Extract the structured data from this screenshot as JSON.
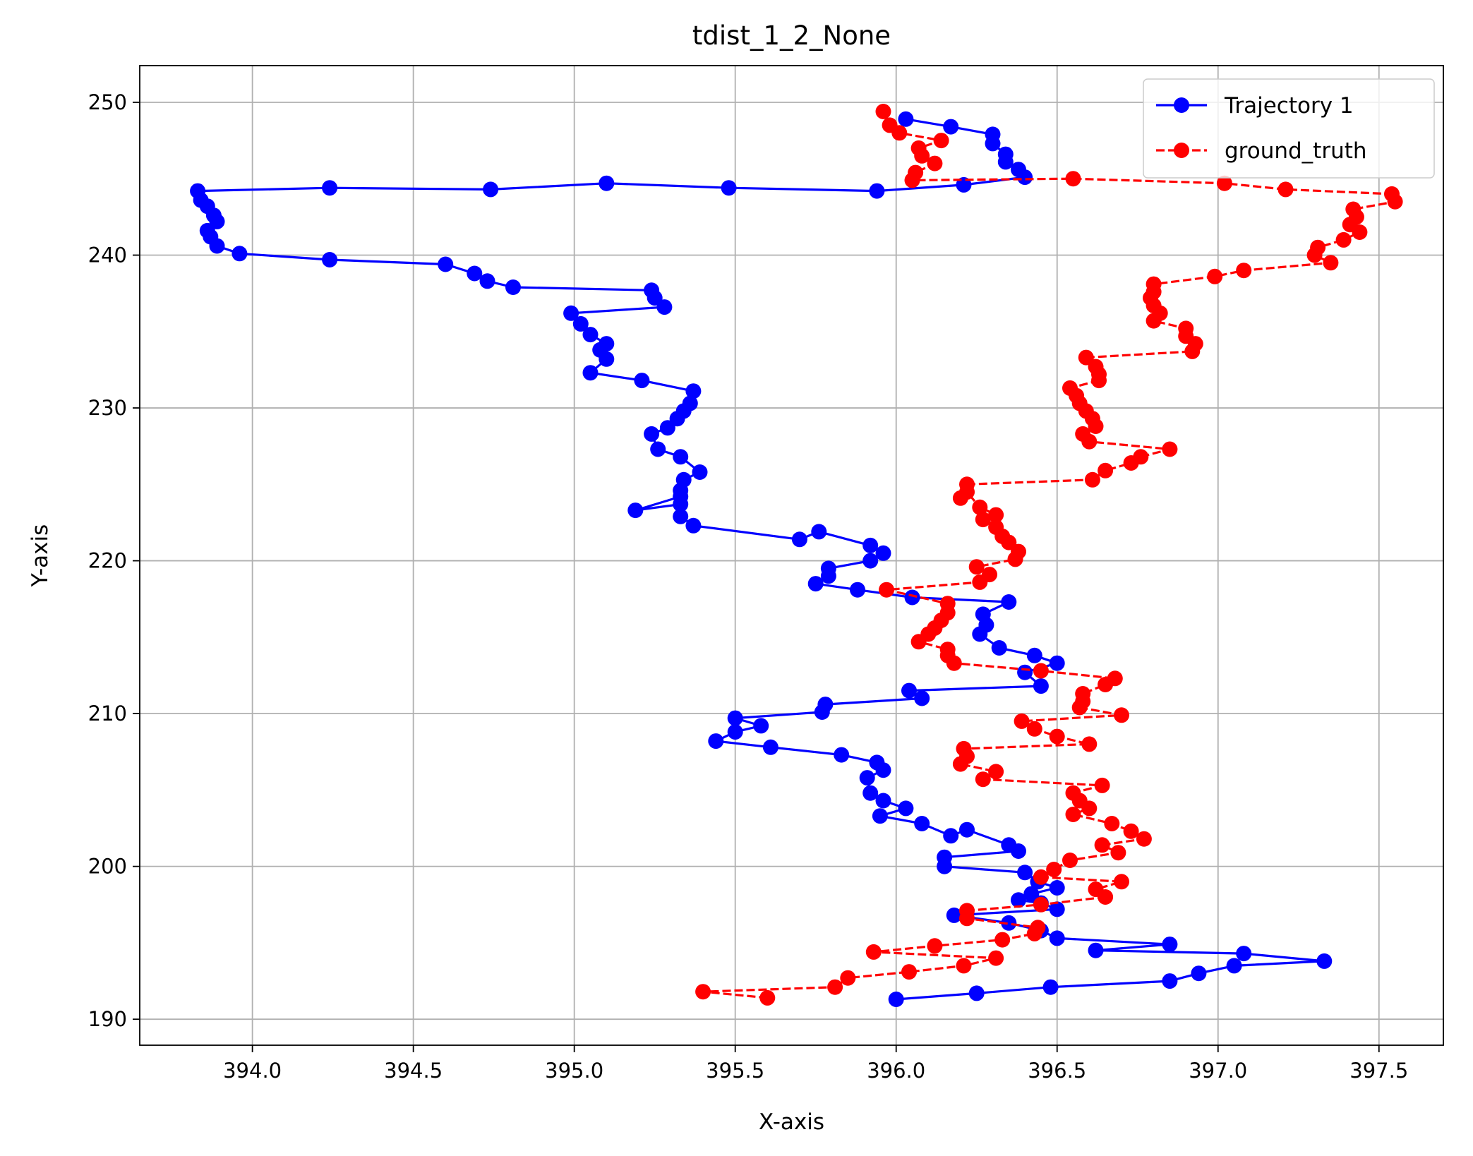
{
  "chart_data": {
    "type": "line",
    "title": "tdist_1_2_None",
    "xlabel": "X-axis",
    "ylabel": "Y-axis",
    "xlim": [
      393.65,
      397.7
    ],
    "ylim": [
      188.3,
      252.4
    ],
    "xticks": [
      394.0,
      394.5,
      395.0,
      395.5,
      396.0,
      396.5,
      397.0,
      397.5
    ],
    "xtick_labels": [
      "394.0",
      "394.5",
      "395.0",
      "395.5",
      "396.0",
      "396.5",
      "397.0",
      "397.5"
    ],
    "yticks": [
      190,
      200,
      210,
      220,
      230,
      240,
      250
    ],
    "ytick_labels": [
      "190",
      "200",
      "210",
      "220",
      "230",
      "240",
      "250"
    ],
    "grid": true,
    "legend_position": "top-right",
    "series": [
      {
        "name": "Trajectory 1",
        "color": "#0000ff",
        "line_style": "solid",
        "marker": "circle",
        "points": [
          [
            396.0,
            191.3
          ],
          [
            396.25,
            191.7
          ],
          [
            396.48,
            192.1
          ],
          [
            396.85,
            192.5
          ],
          [
            396.94,
            193.0
          ],
          [
            397.05,
            193.5
          ],
          [
            397.33,
            193.8
          ],
          [
            397.08,
            194.3
          ],
          [
            396.62,
            194.5
          ],
          [
            396.85,
            194.9
          ],
          [
            396.5,
            195.3
          ],
          [
            396.45,
            195.8
          ],
          [
            396.35,
            196.3
          ],
          [
            396.18,
            196.8
          ],
          [
            396.5,
            197.2
          ],
          [
            396.45,
            197.6
          ],
          [
            396.38,
            197.8
          ],
          [
            396.42,
            198.2
          ],
          [
            396.5,
            198.6
          ],
          [
            396.44,
            199.0
          ],
          [
            396.4,
            199.6
          ],
          [
            396.15,
            200.0
          ],
          [
            396.15,
            200.6
          ],
          [
            396.38,
            201.0
          ],
          [
            396.35,
            201.4
          ],
          [
            396.22,
            202.4
          ],
          [
            396.17,
            202.0
          ],
          [
            396.08,
            202.8
          ],
          [
            395.95,
            203.3
          ],
          [
            396.03,
            203.8
          ],
          [
            395.96,
            204.3
          ],
          [
            395.92,
            204.8
          ],
          [
            395.91,
            205.8
          ],
          [
            395.96,
            206.3
          ],
          [
            395.94,
            206.8
          ],
          [
            395.83,
            207.3
          ],
          [
            395.61,
            207.8
          ],
          [
            395.44,
            208.2
          ],
          [
            395.5,
            208.8
          ],
          [
            395.58,
            209.2
          ],
          [
            395.5,
            209.7
          ],
          [
            395.77,
            210.1
          ],
          [
            395.78,
            210.6
          ],
          [
            396.08,
            211.0
          ],
          [
            396.04,
            211.5
          ],
          [
            396.45,
            211.8
          ],
          [
            396.4,
            212.7
          ],
          [
            396.5,
            213.3
          ],
          [
            396.43,
            213.8
          ],
          [
            396.32,
            214.3
          ],
          [
            396.26,
            215.2
          ],
          [
            396.28,
            215.8
          ],
          [
            396.27,
            216.5
          ],
          [
            396.35,
            217.3
          ],
          [
            396.05,
            217.6
          ],
          [
            395.88,
            218.1
          ],
          [
            395.75,
            218.5
          ],
          [
            395.79,
            219.0
          ],
          [
            395.79,
            219.5
          ],
          [
            395.92,
            220.0
          ],
          [
            395.96,
            220.5
          ],
          [
            395.92,
            221.0
          ],
          [
            395.76,
            221.9
          ],
          [
            395.7,
            221.4
          ],
          [
            395.37,
            222.3
          ],
          [
            395.33,
            222.9
          ],
          [
            395.33,
            223.7
          ],
          [
            395.19,
            223.3
          ],
          [
            395.33,
            224.2
          ],
          [
            395.33,
            224.6
          ],
          [
            395.34,
            225.3
          ],
          [
            395.39,
            225.8
          ],
          [
            395.33,
            226.8
          ],
          [
            395.26,
            227.3
          ],
          [
            395.24,
            228.3
          ],
          [
            395.29,
            228.7
          ],
          [
            395.32,
            229.3
          ],
          [
            395.34,
            229.8
          ],
          [
            395.36,
            230.3
          ],
          [
            395.37,
            231.1
          ],
          [
            395.21,
            231.8
          ],
          [
            395.05,
            232.3
          ],
          [
            395.1,
            233.2
          ],
          [
            395.08,
            233.8
          ],
          [
            395.1,
            234.2
          ],
          [
            395.05,
            234.8
          ],
          [
            395.02,
            235.5
          ],
          [
            394.99,
            236.2
          ],
          [
            395.28,
            236.6
          ],
          [
            395.25,
            237.2
          ],
          [
            395.24,
            237.7
          ],
          [
            394.81,
            237.9
          ],
          [
            394.73,
            238.3
          ],
          [
            394.69,
            238.8
          ],
          [
            394.6,
            239.4
          ],
          [
            394.24,
            239.7
          ],
          [
            393.96,
            240.1
          ],
          [
            393.89,
            240.6
          ],
          [
            393.87,
            241.2
          ],
          [
            393.86,
            241.6
          ],
          [
            393.89,
            242.2
          ],
          [
            393.88,
            242.6
          ],
          [
            393.86,
            243.2
          ],
          [
            393.84,
            243.6
          ],
          [
            393.83,
            244.2
          ],
          [
            394.24,
            244.4
          ],
          [
            394.74,
            244.3
          ],
          [
            395.1,
            244.7
          ],
          [
            395.48,
            244.4
          ],
          [
            395.94,
            244.2
          ],
          [
            396.21,
            244.6
          ],
          [
            396.4,
            245.1
          ],
          [
            396.38,
            245.6
          ],
          [
            396.34,
            246.1
          ],
          [
            396.34,
            246.6
          ],
          [
            396.3,
            247.3
          ],
          [
            396.3,
            247.9
          ],
          [
            396.17,
            248.4
          ],
          [
            396.03,
            248.9
          ]
        ]
      },
      {
        "name": "ground_truth",
        "color": "#ff0000",
        "line_style": "dashed",
        "marker": "circle",
        "points": [
          [
            395.6,
            191.4
          ],
          [
            395.4,
            191.8
          ],
          [
            395.81,
            192.1
          ],
          [
            395.85,
            192.7
          ],
          [
            396.04,
            193.1
          ],
          [
            396.21,
            193.5
          ],
          [
            396.31,
            194.0
          ],
          [
            395.93,
            194.4
          ],
          [
            396.12,
            194.8
          ],
          [
            396.33,
            195.2
          ],
          [
            396.43,
            195.6
          ],
          [
            396.44,
            196.0
          ],
          [
            396.22,
            196.6
          ],
          [
            396.22,
            197.1
          ],
          [
            396.45,
            197.5
          ],
          [
            396.65,
            198.0
          ],
          [
            396.62,
            198.5
          ],
          [
            396.7,
            199.0
          ],
          [
            396.45,
            199.3
          ],
          [
            396.49,
            199.8
          ],
          [
            396.54,
            200.4
          ],
          [
            396.69,
            200.9
          ],
          [
            396.64,
            201.4
          ],
          [
            396.77,
            201.8
          ],
          [
            396.73,
            202.3
          ],
          [
            396.67,
            202.8
          ],
          [
            396.55,
            203.4
          ],
          [
            396.6,
            203.8
          ],
          [
            396.57,
            204.3
          ],
          [
            396.55,
            204.8
          ],
          [
            396.64,
            205.3
          ],
          [
            396.27,
            205.7
          ],
          [
            396.31,
            206.2
          ],
          [
            396.2,
            206.7
          ],
          [
            396.22,
            207.2
          ],
          [
            396.21,
            207.7
          ],
          [
            396.6,
            208.0
          ],
          [
            396.5,
            208.5
          ],
          [
            396.43,
            209.0
          ],
          [
            396.39,
            209.5
          ],
          [
            396.7,
            209.9
          ],
          [
            396.57,
            210.4
          ],
          [
            396.58,
            210.8
          ],
          [
            396.58,
            211.3
          ],
          [
            396.65,
            211.9
          ],
          [
            396.68,
            212.3
          ],
          [
            396.45,
            212.8
          ],
          [
            396.18,
            213.3
          ],
          [
            396.16,
            213.8
          ],
          [
            396.16,
            214.2
          ],
          [
            396.07,
            214.7
          ],
          [
            396.1,
            215.2
          ],
          [
            396.12,
            215.6
          ],
          [
            396.14,
            216.1
          ],
          [
            396.16,
            216.6
          ],
          [
            396.16,
            217.2
          ],
          [
            395.97,
            218.1
          ],
          [
            396.26,
            218.6
          ],
          [
            396.29,
            219.1
          ],
          [
            396.25,
            219.6
          ],
          [
            396.37,
            220.1
          ],
          [
            396.38,
            220.6
          ],
          [
            396.35,
            221.2
          ],
          [
            396.33,
            221.6
          ],
          [
            396.31,
            222.2
          ],
          [
            396.27,
            222.7
          ],
          [
            396.31,
            223.0
          ],
          [
            396.26,
            223.5
          ],
          [
            396.22,
            224.5
          ],
          [
            396.2,
            224.1
          ],
          [
            396.22,
            225.0
          ],
          [
            396.61,
            225.3
          ],
          [
            396.65,
            225.9
          ],
          [
            396.73,
            226.4
          ],
          [
            396.76,
            226.8
          ],
          [
            396.85,
            227.3
          ],
          [
            396.6,
            227.8
          ],
          [
            396.58,
            228.3
          ],
          [
            396.62,
            228.8
          ],
          [
            396.61,
            229.3
          ],
          [
            396.59,
            229.8
          ],
          [
            396.57,
            230.3
          ],
          [
            396.56,
            230.8
          ],
          [
            396.54,
            231.3
          ],
          [
            396.63,
            231.8
          ],
          [
            396.63,
            232.2
          ],
          [
            396.62,
            232.7
          ],
          [
            396.59,
            233.3
          ],
          [
            396.92,
            233.7
          ],
          [
            396.93,
            234.2
          ],
          [
            396.9,
            234.7
          ],
          [
            396.9,
            235.2
          ],
          [
            396.8,
            235.7
          ],
          [
            396.82,
            236.2
          ],
          [
            396.8,
            236.7
          ],
          [
            396.79,
            237.2
          ],
          [
            396.8,
            237.6
          ],
          [
            396.8,
            238.1
          ],
          [
            396.99,
            238.6
          ],
          [
            397.08,
            239.0
          ],
          [
            397.35,
            239.5
          ],
          [
            397.3,
            240.0
          ],
          [
            397.31,
            240.5
          ],
          [
            397.39,
            241.0
          ],
          [
            397.44,
            241.5
          ],
          [
            397.41,
            242.0
          ],
          [
            397.43,
            242.5
          ],
          [
            397.42,
            243.0
          ],
          [
            397.55,
            243.5
          ],
          [
            397.54,
            244.0
          ],
          [
            397.21,
            244.3
          ],
          [
            397.02,
            244.7
          ],
          [
            396.55,
            245.0
          ],
          [
            396.05,
            244.9
          ],
          [
            396.06,
            245.4
          ],
          [
            396.12,
            246.0
          ],
          [
            396.08,
            246.5
          ],
          [
            396.07,
            247.0
          ],
          [
            396.14,
            247.5
          ],
          [
            396.01,
            248.0
          ],
          [
            395.98,
            248.5
          ],
          [
            395.96,
            249.4
          ]
        ]
      }
    ]
  }
}
